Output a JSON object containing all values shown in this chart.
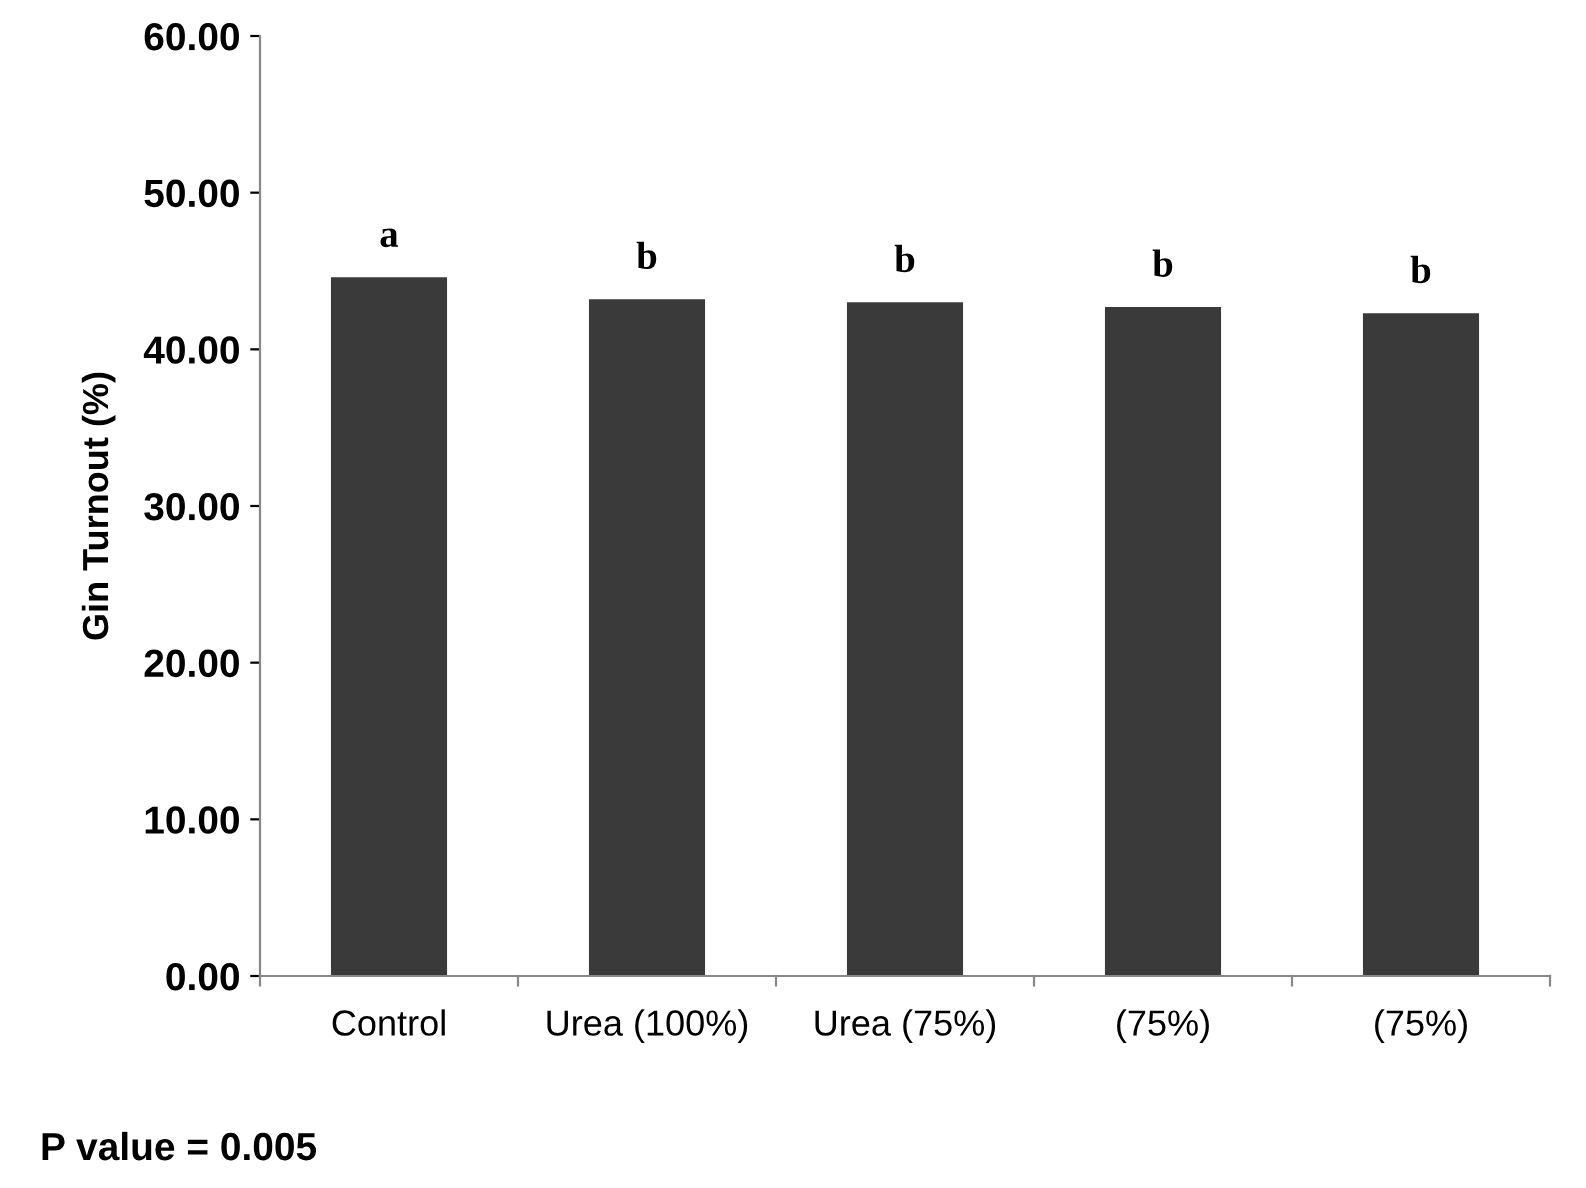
{
  "chart_data": {
    "type": "bar",
    "ylabel": "Gin Turnout (%)",
    "categories": [
      "Control",
      "Urea (100%)",
      "Urea (75%)",
      "(75%)",
      "(75%)"
    ],
    "values": [
      44.6,
      43.2,
      43.0,
      42.7,
      42.3
    ],
    "value_labels": [
      "a",
      "b",
      "b",
      "b",
      "b"
    ],
    "color": "#3a3a3a",
    "ylim": [
      0,
      60
    ],
    "yticks": [
      {
        "value": 0,
        "label": "0.00"
      },
      {
        "value": 10,
        "label": "10.00"
      },
      {
        "value": 20,
        "label": "20.00"
      },
      {
        "value": 30,
        "label": "30.00"
      },
      {
        "value": 40,
        "label": "40.00"
      },
      {
        "value": 50,
        "label": "50.00"
      },
      {
        "value": 60,
        "label": "60.00"
      }
    ],
    "grid": false,
    "legend": false,
    "annotations": [
      "P value = 0.005"
    ]
  }
}
